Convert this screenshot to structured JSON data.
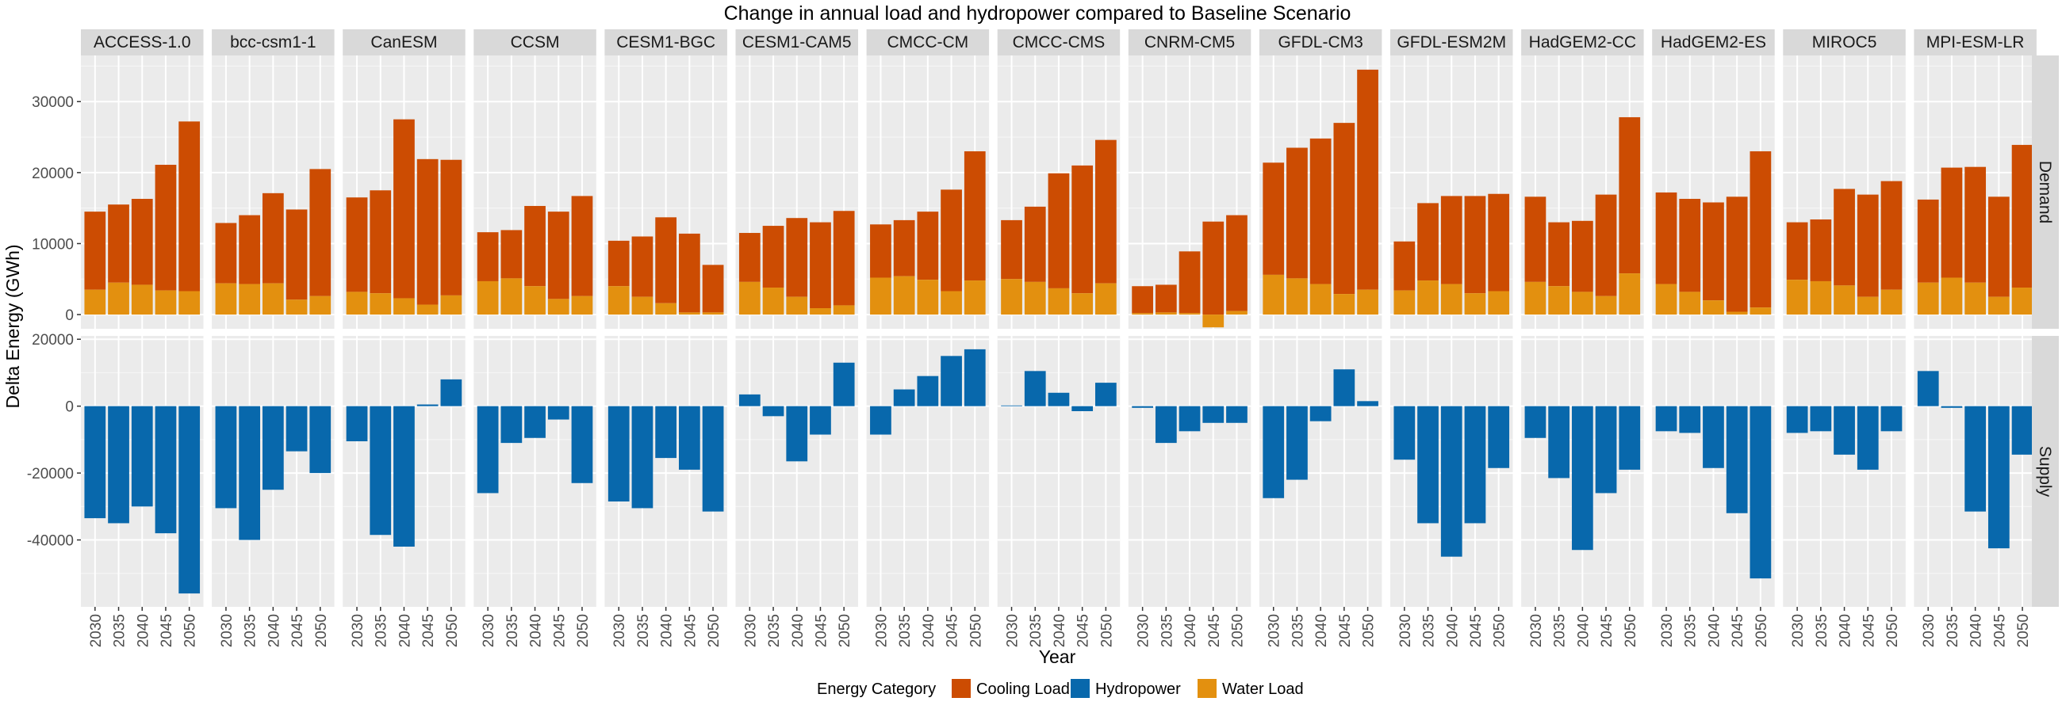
{
  "chart_data": {
    "type": "bar",
    "title": "Change in annual load and hydropower compared to Baseline Scenario",
    "xlabel": "Year",
    "ylabel": "Delta Energy (GWh)",
    "years": [
      "2030",
      "2035",
      "2040",
      "2045",
      "2050"
    ],
    "rows": [
      "Demand",
      "Supply"
    ],
    "legend": {
      "title": "Energy Category",
      "position": "bottom",
      "items": [
        {
          "name": "Cooling Load",
          "color": "#CC4C02"
        },
        {
          "name": "Hydropower",
          "color": "#0868AC"
        },
        {
          "name": "Water Load",
          "color": "#E3900F"
        }
      ]
    },
    "demand_axis": {
      "ylim": [
        -2000,
        36500
      ],
      "ticks": [
        0,
        10000,
        20000,
        30000
      ],
      "tick_labels": [
        "0",
        "10000",
        "20000",
        "30000"
      ]
    },
    "supply_axis": {
      "ylim": [
        -60000,
        21000
      ],
      "ticks": [
        -40000,
        -20000,
        0,
        20000
      ],
      "tick_labels": [
        "-40000",
        "-20000",
        "0",
        "20000"
      ]
    },
    "grid": true,
    "panels": [
      {
        "model": "ACCESS-1.0",
        "cooling_total": [
          14500,
          15500,
          16300,
          21100,
          27200
        ],
        "water": [
          3500,
          4500,
          4200,
          3400,
          3300
        ],
        "hydro": [
          -33500,
          -35000,
          -30000,
          -38000,
          -56000
        ]
      },
      {
        "model": "bcc-csm1-1",
        "cooling_total": [
          12900,
          14000,
          17100,
          14800,
          20500
        ],
        "water": [
          4400,
          4300,
          4400,
          2100,
          2600
        ],
        "hydro": [
          -30500,
          -40000,
          -25000,
          -13500,
          -20000
        ]
      },
      {
        "model": "CanESM",
        "cooling_total": [
          16500,
          17500,
          27500,
          21900,
          21800
        ],
        "water": [
          3200,
          3000,
          2300,
          1400,
          2700
        ],
        "hydro": [
          -10500,
          -38500,
          -42000,
          500,
          8000
        ]
      },
      {
        "model": "CCSM",
        "cooling_total": [
          11600,
          11900,
          15300,
          14500,
          16700
        ],
        "water": [
          4700,
          5100,
          4000,
          2200,
          2600
        ],
        "hydro": [
          -26000,
          -11000,
          -9500,
          -4000,
          -23000
        ]
      },
      {
        "model": "CESM1-BGC",
        "cooling_total": [
          10400,
          11000,
          13700,
          11400,
          7000
        ],
        "water": [
          4000,
          2500,
          1600,
          300,
          300
        ],
        "hydro": [
          -28500,
          -30500,
          -15500,
          -19000,
          -31500
        ]
      },
      {
        "model": "CESM1-CAM5",
        "cooling_total": [
          11500,
          12500,
          13600,
          13000,
          14600
        ],
        "water": [
          4600,
          3800,
          2500,
          900,
          1300
        ],
        "hydro": [
          3500,
          -3000,
          -16500,
          -8500,
          13000
        ]
      },
      {
        "model": "CMCC-CM",
        "cooling_total": [
          12700,
          13300,
          14500,
          17600,
          23000
        ],
        "water": [
          5200,
          5400,
          4900,
          3300,
          4800
        ],
        "hydro": [
          -8500,
          5000,
          9000,
          15000,
          17000
        ]
      },
      {
        "model": "CMCC-CMS",
        "cooling_total": [
          13300,
          15200,
          19900,
          21000,
          24600
        ],
        "water": [
          5000,
          4600,
          3700,
          3000,
          4400
        ],
        "hydro": [
          200,
          10500,
          4000,
          -1500,
          7000
        ]
      },
      {
        "model": "CNRM-CM5",
        "cooling_total": [
          4000,
          4200,
          8900,
          13100,
          14000
        ],
        "water": [
          200,
          300,
          200,
          -1800,
          500
        ],
        "hydro": [
          -500,
          -11000,
          -7500,
          -5000,
          -5000
        ]
      },
      {
        "model": "GFDL-CM3",
        "cooling_total": [
          21400,
          23500,
          24800,
          27000,
          34500
        ],
        "water": [
          5600,
          5100,
          4300,
          2900,
          3500
        ],
        "hydro": [
          -27500,
          -22000,
          -4500,
          11000,
          1500
        ]
      },
      {
        "model": "GFDL-ESM2M",
        "cooling_total": [
          10300,
          15700,
          16700,
          16700,
          17000
        ],
        "water": [
          3400,
          4800,
          4300,
          3000,
          3300
        ],
        "hydro": [
          -16000,
          -35000,
          -45000,
          -35000,
          -18500
        ]
      },
      {
        "model": "HadGEM2-CC",
        "cooling_total": [
          16600,
          13000,
          13200,
          16900,
          27800
        ],
        "water": [
          4600,
          4000,
          3200,
          2600,
          5800
        ],
        "hydro": [
          -9500,
          -21500,
          -43000,
          -26000,
          -19000
        ]
      },
      {
        "model": "HadGEM2-ES",
        "cooling_total": [
          17200,
          16300,
          15800,
          16600,
          23000
        ],
        "water": [
          4300,
          3200,
          2000,
          400,
          1000
        ],
        "hydro": [
          -7500,
          -8000,
          -18500,
          -32000,
          -51500
        ]
      },
      {
        "model": "MIROC5",
        "cooling_total": [
          13000,
          13400,
          17700,
          16900,
          18800
        ],
        "water": [
          4900,
          4700,
          4100,
          2500,
          3500
        ],
        "hydro": [
          -8000,
          -7500,
          -14500,
          -19000,
          -7500
        ]
      },
      {
        "model": "MPI-ESM-LR",
        "cooling_total": [
          16200,
          20700,
          20800,
          16600,
          23900
        ],
        "water": [
          4500,
          5200,
          4500,
          2500,
          3800
        ],
        "hydro": [
          10500,
          -500,
          -31500,
          -42500,
          -14500
        ]
      }
    ]
  }
}
